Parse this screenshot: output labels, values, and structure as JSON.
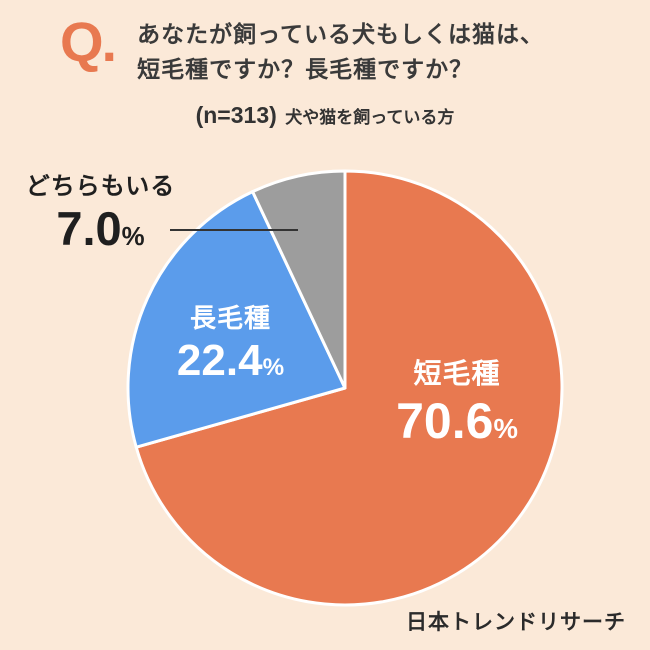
{
  "header": {
    "q_mark": "Q.",
    "line1": "あなたが飼っている犬もしくは猫は、",
    "line2": "短毛種ですか？長毛種ですか？"
  },
  "subtitle": {
    "n": "(n=313)",
    "audience": "犬や猫を飼っている方"
  },
  "footer": {
    "brand": "日本トレンドリサーチ"
  },
  "colors": {
    "background": "#fbe9d8",
    "accent_orange": "#e87950",
    "blue": "#5b9ceb",
    "gray": "#9d9d9d",
    "text_dark": "#333333"
  },
  "chart_data": {
    "type": "pie",
    "title": "あなたが飼っている犬もしくは猫は、短毛種ですか？長毛種ですか？",
    "sample_note": "(n=313) 犬や猫を飼っている方",
    "start_angle_deg": 0,
    "direction": "clockwise",
    "legend_position": "none",
    "slices": [
      {
        "label": "短毛種",
        "value": 70.6,
        "value_label": "70.6",
        "unit": "%",
        "color": "#e87950",
        "label_placement": "inside"
      },
      {
        "label": "長毛種",
        "value": 22.4,
        "value_label": "22.4",
        "unit": "%",
        "color": "#5b9ceb",
        "label_placement": "inside"
      },
      {
        "label": "どちらもいる",
        "value": 7.0,
        "value_label": "7.0",
        "unit": "%",
        "color": "#9d9d9d",
        "label_placement": "outside-left"
      }
    ]
  }
}
